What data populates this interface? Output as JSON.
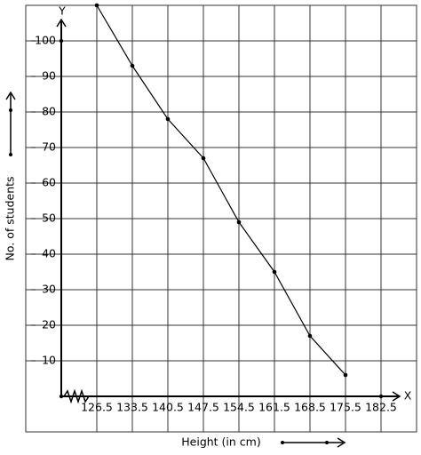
{
  "chart_data": {
    "type": "line",
    "x_label": "Height (in cm)",
    "y_label": "No. of students",
    "x_axis_name": "X",
    "y_axis_name": "Y",
    "x": [
      126.5,
      133.5,
      140.5,
      147.5,
      154.5,
      161.5,
      168.5,
      175.5
    ],
    "series": [
      {
        "color": "#000000",
        "values": [
          110,
          93,
          78,
          67,
          49,
          35,
          17,
          6
        ]
      }
    ],
    "xlim": [
      112.5,
      189.5
    ],
    "ylim": [
      -10,
      110
    ],
    "xticks": [
      126.5,
      133.5,
      140.5,
      147.5,
      154.5,
      161.5,
      168.5,
      175.5,
      182.5
    ],
    "yticks": [
      10,
      20,
      30,
      40,
      50,
      60,
      70,
      80,
      90,
      100
    ],
    "grid": true
  }
}
